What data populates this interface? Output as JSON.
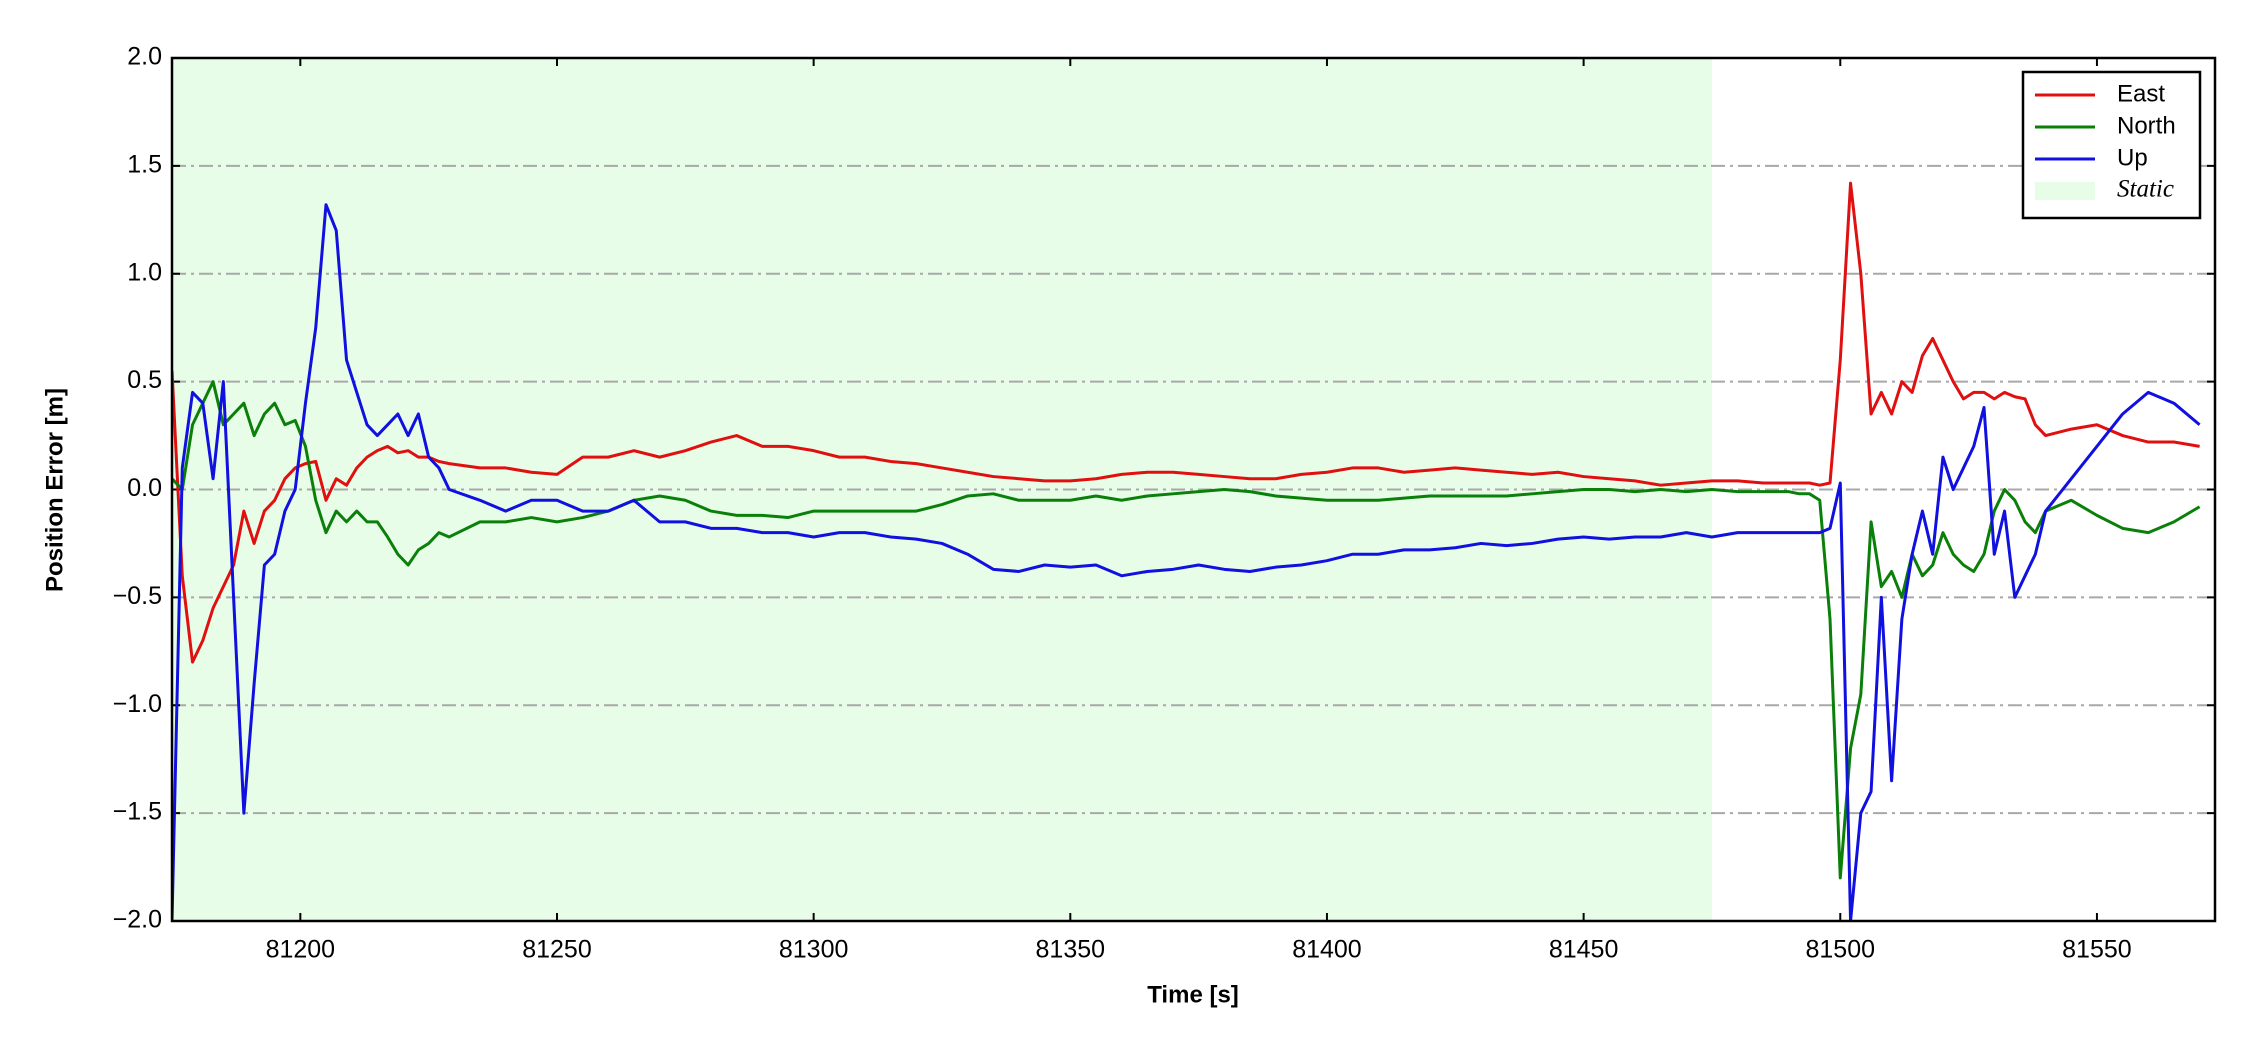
{
  "chart_data": {
    "type": "line",
    "xlabel": "Time [s]",
    "ylabel": "Position Error [m]",
    "xlim": [
      81175,
      81573
    ],
    "ylim": [
      -2,
      2
    ],
    "xticks": [
      81200,
      81250,
      81300,
      81350,
      81400,
      81450,
      81500,
      81550
    ],
    "yticks": [
      {
        "value": -2,
        "label": "−2.0"
      },
      {
        "value": -1.5,
        "label": "−1.5"
      },
      {
        "value": -1,
        "label": "−1.0"
      },
      {
        "value": -0.5,
        "label": "−0.5"
      },
      {
        "value": 0,
        "label": "0.0"
      },
      {
        "value": 0.5,
        "label": "0.5"
      },
      {
        "value": 1,
        "label": "1.0"
      },
      {
        "value": 1.5,
        "label": "1.5"
      },
      {
        "value": 2,
        "label": "2.0"
      }
    ],
    "grid": true,
    "legend": "upper right",
    "static_region": {
      "label": "Static",
      "xlim": [
        81175,
        81475
      ],
      "color": "#e8fde8"
    },
    "x": [
      81175,
      81177,
      81179,
      81181,
      81183,
      81185,
      81187,
      81189,
      81191,
      81193,
      81195,
      81197,
      81199,
      81201,
      81203,
      81205,
      81207,
      81209,
      81211,
      81213,
      81215,
      81217,
      81219,
      81221,
      81223,
      81225,
      81227,
      81229,
      81235,
      81240,
      81245,
      81250,
      81255,
      81260,
      81265,
      81270,
      81275,
      81280,
      81285,
      81290,
      81295,
      81300,
      81305,
      81310,
      81315,
      81320,
      81325,
      81330,
      81335,
      81340,
      81345,
      81350,
      81355,
      81360,
      81365,
      81370,
      81375,
      81380,
      81385,
      81390,
      81395,
      81400,
      81405,
      81410,
      81415,
      81420,
      81425,
      81430,
      81435,
      81440,
      81445,
      81450,
      81455,
      81460,
      81465,
      81470,
      81475,
      81480,
      81485,
      81490,
      81492,
      81494,
      81496,
      81498,
      81500,
      81502,
      81504,
      81506,
      81508,
      81510,
      81512,
      81514,
      81516,
      81518,
      81520,
      81522,
      81524,
      81526,
      81528,
      81530,
      81532,
      81534,
      81536,
      81538,
      81540,
      81545,
      81550,
      81555,
      81560,
      81565,
      81570
    ],
    "series": [
      {
        "name": "East",
        "color": "#e01010",
        "values": [
          0.55,
          -0.4,
          -0.8,
          -0.7,
          -0.55,
          -0.45,
          -0.35,
          -0.1,
          -0.25,
          -0.1,
          -0.05,
          0.05,
          0.1,
          0.12,
          0.13,
          -0.05,
          0.05,
          0.02,
          0.1,
          0.15,
          0.18,
          0.2,
          0.17,
          0.18,
          0.15,
          0.15,
          0.13,
          0.12,
          0.1,
          0.1,
          0.08,
          0.07,
          0.15,
          0.15,
          0.18,
          0.15,
          0.18,
          0.22,
          0.25,
          0.2,
          0.2,
          0.18,
          0.15,
          0.15,
          0.13,
          0.12,
          0.1,
          0.08,
          0.06,
          0.05,
          0.04,
          0.04,
          0.05,
          0.07,
          0.08,
          0.08,
          0.07,
          0.06,
          0.05,
          0.05,
          0.07,
          0.08,
          0.1,
          0.1,
          0.08,
          0.09,
          0.1,
          0.09,
          0.08,
          0.07,
          0.08,
          0.06,
          0.05,
          0.04,
          0.02,
          0.03,
          0.04,
          0.04,
          0.03,
          0.03,
          0.03,
          0.03,
          0.02,
          0.03,
          0.6,
          1.42,
          1.0,
          0.35,
          0.45,
          0.35,
          0.5,
          0.45,
          0.62,
          0.7,
          0.6,
          0.5,
          0.42,
          0.45,
          0.45,
          0.42,
          0.45,
          0.43,
          0.42,
          0.3,
          0.25,
          0.28,
          0.3,
          0.25,
          0.22,
          0.22,
          0.2
        ]
      },
      {
        "name": "North",
        "color": "#0a800a",
        "values": [
          0.05,
          0.0,
          0.3,
          0.4,
          0.5,
          0.3,
          0.35,
          0.4,
          0.25,
          0.35,
          0.4,
          0.3,
          0.32,
          0.2,
          -0.05,
          -0.2,
          -0.1,
          -0.15,
          -0.1,
          -0.15,
          -0.15,
          -0.22,
          -0.3,
          -0.35,
          -0.28,
          -0.25,
          -0.2,
          -0.22,
          -0.15,
          -0.15,
          -0.13,
          -0.15,
          -0.13,
          -0.1,
          -0.05,
          -0.03,
          -0.05,
          -0.1,
          -0.12,
          -0.12,
          -0.13,
          -0.1,
          -0.1,
          -0.1,
          -0.1,
          -0.1,
          -0.07,
          -0.03,
          -0.02,
          -0.05,
          -0.05,
          -0.05,
          -0.03,
          -0.05,
          -0.03,
          -0.02,
          -0.01,
          0.0,
          -0.01,
          -0.03,
          -0.04,
          -0.05,
          -0.05,
          -0.05,
          -0.04,
          -0.03,
          -0.03,
          -0.03,
          -0.03,
          -0.02,
          -0.01,
          0.0,
          0.0,
          -0.01,
          0.0,
          -0.01,
          0.0,
          -0.01,
          -0.01,
          -0.01,
          -0.02,
          -0.02,
          -0.05,
          -0.6,
          -1.8,
          -1.2,
          -0.95,
          -0.15,
          -0.45,
          -0.38,
          -0.5,
          -0.3,
          -0.4,
          -0.35,
          -0.2,
          -0.3,
          -0.35,
          -0.38,
          -0.3,
          -0.1,
          0.0,
          -0.05,
          -0.15,
          -0.2,
          -0.1,
          -0.05,
          -0.12,
          -0.18,
          -0.2,
          -0.15,
          -0.08
        ]
      },
      {
        "name": "Up",
        "color": "#1010e0",
        "values": [
          -2.0,
          0.1,
          0.45,
          0.4,
          0.05,
          0.5,
          -0.5,
          -1.5,
          -0.9,
          -0.35,
          -0.3,
          -0.1,
          0.0,
          0.4,
          0.75,
          1.32,
          1.2,
          0.6,
          0.45,
          0.3,
          0.25,
          0.3,
          0.35,
          0.25,
          0.35,
          0.15,
          0.1,
          0.0,
          -0.05,
          -0.1,
          -0.05,
          -0.05,
          -0.1,
          -0.1,
          -0.05,
          -0.15,
          -0.15,
          -0.18,
          -0.18,
          -0.2,
          -0.2,
          -0.22,
          -0.2,
          -0.2,
          -0.22,
          -0.23,
          -0.25,
          -0.3,
          -0.37,
          -0.38,
          -0.35,
          -0.36,
          -0.35,
          -0.4,
          -0.38,
          -0.37,
          -0.35,
          -0.37,
          -0.38,
          -0.36,
          -0.35,
          -0.33,
          -0.3,
          -0.3,
          -0.28,
          -0.28,
          -0.27,
          -0.25,
          -0.26,
          -0.25,
          -0.23,
          -0.22,
          -0.23,
          -0.22,
          -0.22,
          -0.2,
          -0.22,
          -0.2,
          -0.2,
          -0.2,
          -0.2,
          -0.2,
          -0.2,
          -0.18,
          0.03,
          -2.0,
          -1.5,
          -1.4,
          -0.5,
          -1.35,
          -0.6,
          -0.3,
          -0.1,
          -0.3,
          0.15,
          0.0,
          0.1,
          0.2,
          0.38,
          -0.3,
          -0.1,
          -0.5,
          -0.4,
          -0.3,
          -0.1,
          0.05,
          0.2,
          0.35,
          0.45,
          0.4,
          0.3
        ]
      }
    ]
  }
}
